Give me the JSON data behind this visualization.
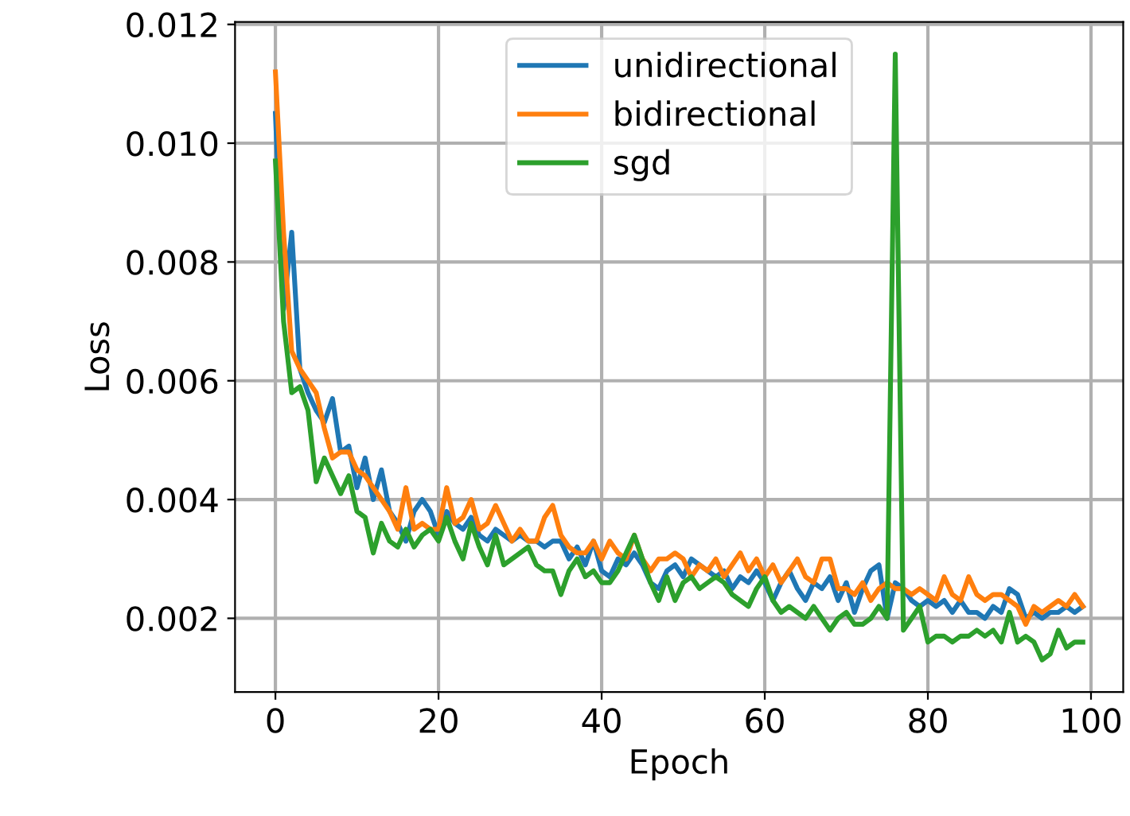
{
  "chart_data": {
    "type": "line",
    "xlabel": "Epoch",
    "ylabel": "Loss",
    "x": [
      0,
      1,
      2,
      3,
      4,
      5,
      6,
      7,
      8,
      9,
      10,
      11,
      12,
      13,
      14,
      15,
      16,
      17,
      18,
      19,
      20,
      21,
      22,
      23,
      24,
      25,
      26,
      27,
      28,
      29,
      30,
      31,
      32,
      33,
      34,
      35,
      36,
      37,
      38,
      39,
      40,
      41,
      42,
      43,
      44,
      45,
      46,
      47,
      48,
      49,
      50,
      51,
      52,
      53,
      54,
      55,
      56,
      57,
      58,
      59,
      60,
      61,
      62,
      63,
      64,
      65,
      66,
      67,
      68,
      69,
      70,
      71,
      72,
      73,
      74,
      75,
      76,
      77,
      78,
      79,
      80,
      81,
      82,
      83,
      84,
      85,
      86,
      87,
      88,
      89,
      90,
      91,
      92,
      93,
      94,
      95,
      96,
      97,
      98,
      99
    ],
    "series": [
      {
        "name": "unidirectional",
        "color": "#1f77b4",
        "values": [
          0.0105,
          0.0072,
          0.0085,
          0.0062,
          0.0058,
          0.0055,
          0.0053,
          0.0057,
          0.0048,
          0.0049,
          0.0042,
          0.0047,
          0.004,
          0.0045,
          0.0038,
          0.0036,
          0.0033,
          0.0038,
          0.004,
          0.0038,
          0.0034,
          0.0038,
          0.0036,
          0.0035,
          0.0037,
          0.0034,
          0.0033,
          0.0035,
          0.0034,
          0.0033,
          0.0034,
          0.0033,
          0.0033,
          0.0032,
          0.0033,
          0.0033,
          0.003,
          0.0032,
          0.0029,
          0.0033,
          0.0028,
          0.0027,
          0.003,
          0.0029,
          0.0031,
          0.0029,
          0.0026,
          0.0025,
          0.0028,
          0.0029,
          0.0027,
          0.003,
          0.0029,
          0.0028,
          0.0027,
          0.0028,
          0.0025,
          0.0027,
          0.0026,
          0.0028,
          0.0026,
          0.0023,
          0.0026,
          0.0028,
          0.0025,
          0.0023,
          0.0026,
          0.0025,
          0.0027,
          0.0023,
          0.0026,
          0.0021,
          0.0025,
          0.0028,
          0.0029,
          0.002,
          0.0026,
          0.0025,
          0.0023,
          0.0022,
          0.0023,
          0.0022,
          0.0023,
          0.0021,
          0.0023,
          0.0021,
          0.0021,
          0.002,
          0.0022,
          0.0021,
          0.0025,
          0.0024,
          0.002,
          0.0021,
          0.002,
          0.0021,
          0.0021,
          0.0022,
          0.0021,
          0.0022
        ]
      },
      {
        "name": "bidirectional",
        "color": "#ff7f0e",
        "values": [
          0.0112,
          0.0085,
          0.0065,
          0.0062,
          0.006,
          0.0058,
          0.0052,
          0.0047,
          0.0048,
          0.0048,
          0.0045,
          0.0044,
          0.0042,
          0.004,
          0.0038,
          0.0035,
          0.0042,
          0.0035,
          0.0036,
          0.0035,
          0.0035,
          0.0042,
          0.0036,
          0.0037,
          0.004,
          0.0035,
          0.0036,
          0.0039,
          0.0036,
          0.0033,
          0.0035,
          0.0033,
          0.0033,
          0.0037,
          0.0039,
          0.0034,
          0.0032,
          0.0031,
          0.0031,
          0.0033,
          0.003,
          0.0033,
          0.0031,
          0.003,
          0.0034,
          0.003,
          0.0028,
          0.003,
          0.003,
          0.0031,
          0.003,
          0.0027,
          0.0029,
          0.0028,
          0.003,
          0.0027,
          0.0029,
          0.0031,
          0.0028,
          0.003,
          0.0027,
          0.0029,
          0.0026,
          0.0028,
          0.003,
          0.0027,
          0.0026,
          0.003,
          0.003,
          0.0025,
          0.0025,
          0.0024,
          0.0026,
          0.0023,
          0.0025,
          0.0026,
          0.0025,
          0.0025,
          0.0024,
          0.0025,
          0.0024,
          0.0023,
          0.0027,
          0.0024,
          0.0023,
          0.0027,
          0.0024,
          0.0023,
          0.0024,
          0.0024,
          0.0023,
          0.0022,
          0.0019,
          0.0022,
          0.0021,
          0.0022,
          0.0023,
          0.0022,
          0.0024,
          0.0022
        ]
      },
      {
        "name": "sgd",
        "color": "#2ca02c",
        "values": [
          0.0097,
          0.007,
          0.0058,
          0.0059,
          0.0055,
          0.0043,
          0.0047,
          0.0044,
          0.0041,
          0.0044,
          0.0038,
          0.0037,
          0.0031,
          0.0036,
          0.0033,
          0.0032,
          0.0035,
          0.0032,
          0.0034,
          0.0035,
          0.0033,
          0.0037,
          0.0033,
          0.003,
          0.0036,
          0.0032,
          0.0029,
          0.0034,
          0.0029,
          0.003,
          0.0031,
          0.0032,
          0.0029,
          0.0028,
          0.0028,
          0.0024,
          0.0028,
          0.003,
          0.0027,
          0.0028,
          0.0026,
          0.0026,
          0.0028,
          0.0031,
          0.0034,
          0.003,
          0.0026,
          0.0023,
          0.0027,
          0.0023,
          0.0026,
          0.0027,
          0.0025,
          0.0026,
          0.0027,
          0.0026,
          0.0024,
          0.0023,
          0.0022,
          0.0025,
          0.0027,
          0.0023,
          0.0021,
          0.0022,
          0.0021,
          0.002,
          0.0022,
          0.002,
          0.0018,
          0.002,
          0.0021,
          0.0019,
          0.0019,
          0.002,
          0.0022,
          0.002,
          0.0115,
          0.0018,
          0.002,
          0.0022,
          0.0016,
          0.0017,
          0.0017,
          0.0016,
          0.0017,
          0.0017,
          0.0018,
          0.0017,
          0.0018,
          0.0016,
          0.0021,
          0.0016,
          0.0017,
          0.0016,
          0.0013,
          0.0014,
          0.0018,
          0.0015,
          0.0016,
          0.0016
        ]
      }
    ],
    "xlim": [
      -4.95,
      103.95
    ],
    "xticks": [
      0,
      20,
      40,
      60,
      80,
      100
    ],
    "ylim": [
      0.00076,
      0.01204
    ],
    "yticks": [
      {
        "value": 0.002,
        "label": "0.002"
      },
      {
        "value": 0.004,
        "label": "0.004"
      },
      {
        "value": 0.006,
        "label": "0.006"
      },
      {
        "value": 0.008,
        "label": "0.008"
      },
      {
        "value": 0.01,
        "label": "0.010"
      },
      {
        "value": 0.012,
        "label": "0.012"
      }
    ],
    "grid": true,
    "legend": "top center",
    "marker": "none",
    "line_style": "solid"
  }
}
